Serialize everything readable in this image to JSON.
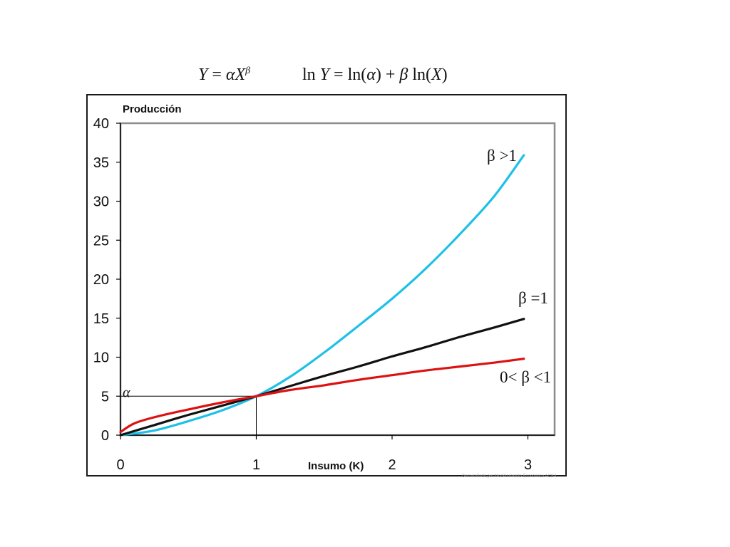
{
  "formulas": {
    "left": "Y = αX^β",
    "right": "ln Y = ln(α) + β ln(X)"
  },
  "watermark": "Desarrollado por Modelamiento Económico ACSA",
  "chart_data": {
    "type": "line",
    "ylabel": "Producción",
    "xlabel": "Insumo (K)",
    "xlim": [
      0,
      3.2
    ],
    "ylim": [
      0,
      40
    ],
    "x_ticks": [
      0,
      1,
      2,
      3
    ],
    "y_ticks": [
      0,
      5,
      10,
      15,
      20,
      25,
      30,
      35,
      40
    ],
    "grid": false,
    "alpha_marker": {
      "label": "α",
      "x": 1,
      "y": 5
    },
    "series": [
      {
        "name": "β >1",
        "color": "#1ec0e8",
        "x": [
          0,
          0.25,
          0.5,
          0.75,
          1,
          1.25,
          1.5,
          1.75,
          2,
          2.25,
          2.5,
          2.75,
          2.97
        ],
        "values": [
          0,
          0.6,
          1.8,
          3.2,
          5,
          7.5,
          10.6,
          14,
          17.5,
          21.4,
          25.8,
          30.6,
          35.9
        ]
      },
      {
        "name": "β =1",
        "color": "#111111",
        "x": [
          0,
          0.25,
          0.5,
          0.75,
          1,
          1.25,
          1.5,
          1.75,
          2,
          2.25,
          2.5,
          2.75,
          2.97
        ],
        "values": [
          0,
          1.3,
          2.6,
          3.8,
          5,
          6.3,
          7.6,
          8.8,
          10.1,
          11.3,
          12.6,
          13.8,
          14.9
        ]
      },
      {
        "name": "0< β <1",
        "color": "#dd1111",
        "x": [
          0,
          0.1,
          0.25,
          0.5,
          0.75,
          1,
          1.25,
          1.5,
          1.75,
          2,
          2.25,
          2.5,
          2.75,
          2.97
        ],
        "values": [
          0.4,
          1.5,
          2.3,
          3.3,
          4.2,
          5,
          5.8,
          6.4,
          7.1,
          7.7,
          8.3,
          8.8,
          9.3,
          9.8
        ]
      }
    ]
  }
}
